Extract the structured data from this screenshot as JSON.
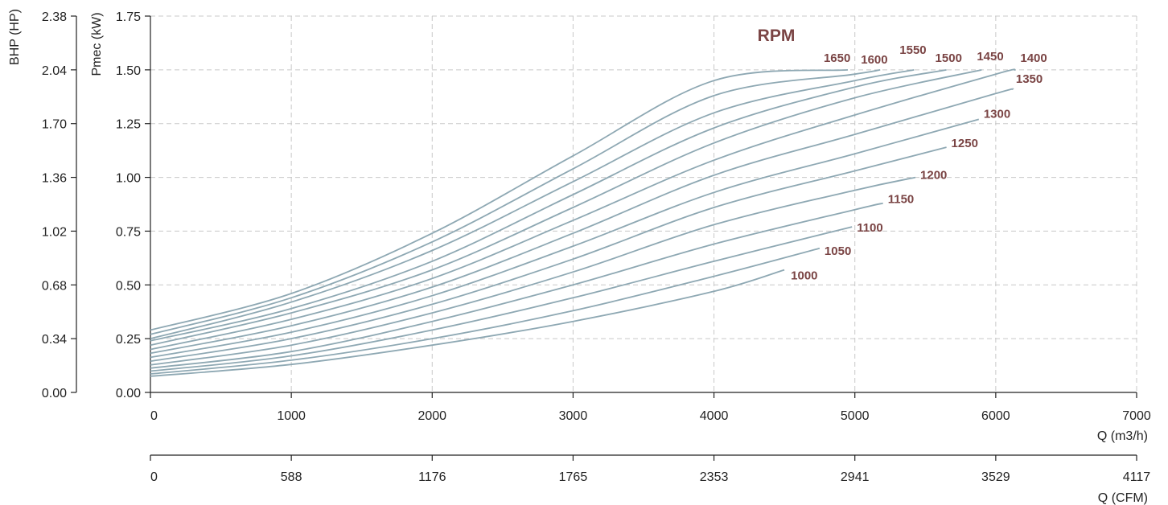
{
  "chart_data": {
    "type": "line",
    "title": "RPM",
    "xlabel": "Q (m3/h)",
    "x2label": "Q (CFM)",
    "ylabel": "Pmec (kW)",
    "y2label": "BHP (HP)",
    "xlim": [
      0,
      7000
    ],
    "ylim": [
      0,
      1.75
    ],
    "grid": true,
    "x_ticks": [
      "0",
      "1000",
      "2000",
      "3000",
      "4000",
      "5000",
      "6000",
      "7000"
    ],
    "x_ticks_values": [
      0,
      1000,
      2000,
      3000,
      4000,
      5000,
      6000,
      7000
    ],
    "x2_ticks": [
      "0",
      "588",
      "1176",
      "1765",
      "2353",
      "2941",
      "3529",
      "4117"
    ],
    "y_ticks": [
      "0.00",
      "0.25",
      "0.50",
      "0.75",
      "1.00",
      "1.25",
      "1.50",
      "1.75"
    ],
    "y_ticks_values": [
      0,
      0.25,
      0.5,
      0.75,
      1.0,
      1.25,
      1.5,
      1.75
    ],
    "y2_ticks": [
      "0.00",
      "0.34",
      "0.68",
      "1.02",
      "1.36",
      "1.70",
      "2.04",
      "2.38"
    ],
    "y2_ticks_values": [
      0,
      0.34,
      0.68,
      1.02,
      1.36,
      1.7,
      2.04,
      2.38
    ],
    "series": [
      {
        "name": "1000",
        "x": [
          0,
          1000,
          2000,
          3000,
          4000,
          4500
        ],
        "y": [
          0.075,
          0.13,
          0.22,
          0.33,
          0.47,
          0.57
        ]
      },
      {
        "name": "1050",
        "x": [
          0,
          1000,
          2000,
          3000,
          4000,
          4750
        ],
        "y": [
          0.086,
          0.15,
          0.25,
          0.38,
          0.54,
          0.67
        ]
      },
      {
        "name": "1100",
        "x": [
          0,
          1000,
          2000,
          3000,
          4000,
          4980
        ],
        "y": [
          0.099,
          0.17,
          0.29,
          0.44,
          0.61,
          0.77
        ]
      },
      {
        "name": "1150",
        "x": [
          0,
          1000,
          2000,
          3000,
          4000,
          5000,
          5200
        ],
        "y": [
          0.113,
          0.19,
          0.33,
          0.5,
          0.69,
          0.85,
          0.88
        ]
      },
      {
        "name": "1200",
        "x": [
          0,
          1000,
          2000,
          3000,
          4000,
          5000,
          5430
        ],
        "y": [
          0.128,
          0.22,
          0.37,
          0.56,
          0.78,
          0.94,
          1.0
        ]
      },
      {
        "name": "1250",
        "x": [
          0,
          1000,
          2000,
          3000,
          4000,
          5000,
          5650
        ],
        "y": [
          0.145,
          0.25,
          0.41,
          0.62,
          0.86,
          1.03,
          1.14
        ]
      },
      {
        "name": "1300",
        "x": [
          0,
          1000,
          2000,
          3000,
          4000,
          5000,
          5880
        ],
        "y": [
          0.163,
          0.28,
          0.45,
          0.68,
          0.93,
          1.11,
          1.27
        ]
      },
      {
        "name": "1350",
        "x": [
          0,
          1000,
          2000,
          3000,
          4000,
          5000,
          6000,
          6120
        ],
        "y": [
          0.182,
          0.31,
          0.49,
          0.74,
          1.01,
          1.2,
          1.39,
          1.41
        ]
      },
      {
        "name": "1400",
        "x": [
          0,
          1000,
          2000,
          3000,
          4000,
          5000,
          6000,
          6140
        ],
        "y": [
          0.2,
          0.34,
          0.53,
          0.8,
          1.08,
          1.29,
          1.48,
          1.5
        ]
      },
      {
        "name": "1450",
        "x": [
          0,
          1000,
          2000,
          3000,
          4000,
          5000,
          5900
        ],
        "y": [
          0.22,
          0.37,
          0.57,
          0.86,
          1.16,
          1.37,
          1.5
        ]
      },
      {
        "name": "1500",
        "x": [
          0,
          1000,
          2000,
          3000,
          4000,
          5000,
          5650
        ],
        "y": [
          0.24,
          0.39,
          0.61,
          0.92,
          1.23,
          1.42,
          1.5
        ]
      },
      {
        "name": "1550",
        "x": [
          0,
          1000,
          2000,
          3000,
          4000,
          5000,
          5420
        ],
        "y": [
          0.25,
          0.42,
          0.66,
          0.98,
          1.3,
          1.45,
          1.5
        ]
      },
      {
        "name": "1600",
        "x": [
          0,
          1000,
          2000,
          3000,
          4000,
          5000,
          5180
        ],
        "y": [
          0.27,
          0.44,
          0.7,
          1.04,
          1.38,
          1.48,
          1.5
        ]
      },
      {
        "name": "1650",
        "x": [
          0,
          1000,
          2000,
          3000,
          4000,
          4950
        ],
        "y": [
          0.29,
          0.46,
          0.74,
          1.1,
          1.45,
          1.5
        ]
      }
    ],
    "colors": {
      "curve": "#8ea8b3",
      "label": "#7a4444",
      "grid": "#c8c8c8",
      "axis": "#222222"
    }
  }
}
